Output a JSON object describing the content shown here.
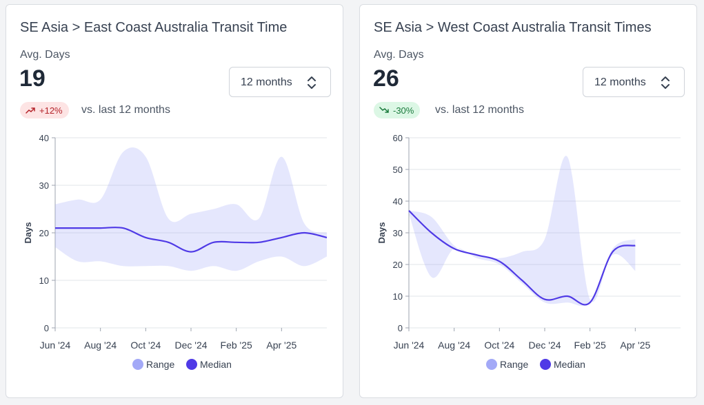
{
  "cards": [
    {
      "title": "SE Asia > East Coast Australia Transit Time",
      "metric_label": "Avg. Days",
      "value": 19,
      "change": "+12%",
      "trend": "up",
      "comparison": "vs. last 12 months",
      "select": "12 months"
    },
    {
      "title": "SE Asia > West Coast Australia Transit Times",
      "metric_label": "Avg. Days",
      "value": 26,
      "change": "-30%",
      "trend": "down",
      "comparison": "vs. last 12 months",
      "select": "12 months"
    }
  ],
  "chart_data": [
    {
      "type": "range-line",
      "ylabel": "Days",
      "x": [
        "Jun '24",
        null,
        "Aug '24",
        null,
        "Oct '24",
        null,
        "Dec '24",
        null,
        "Feb '25",
        null,
        "Apr '25",
        null,
        null
      ],
      "series": [
        {
          "name": "Range",
          "color": "#a3a9f7",
          "low": [
            17,
            14,
            14,
            13,
            13,
            13,
            12,
            13,
            12,
            14,
            15,
            13,
            15
          ],
          "high": [
            26,
            27,
            27,
            37,
            36,
            23,
            24,
            25,
            26,
            23,
            36,
            22,
            20
          ]
        },
        {
          "name": "Median",
          "color": "#4f3ae6",
          "values": [
            21,
            21,
            21,
            21,
            19,
            18,
            16,
            18,
            18,
            18,
            19,
            20,
            19
          ]
        }
      ],
      "ylim": [
        0,
        40
      ],
      "yticks": [
        0,
        10,
        20,
        30,
        40
      ],
      "grid": true
    },
    {
      "type": "range-line",
      "ylabel": "Days",
      "x": [
        "Jun '24",
        null,
        "Aug '24",
        null,
        "Oct '24",
        null,
        "Dec '24",
        null,
        "Feb '25",
        null,
        "Apr '25",
        null,
        null
      ],
      "series": [
        {
          "name": "Range",
          "color": "#a3a9f7",
          "low": [
            36,
            16,
            25,
            22,
            20,
            14,
            8,
            8,
            8,
            23,
            18,
            null,
            null
          ],
          "high": [
            37,
            35,
            26,
            23,
            22,
            24,
            28,
            54,
            9,
            25,
            28,
            null,
            null
          ]
        },
        {
          "name": "Median",
          "color": "#4f3ae6",
          "values": [
            37,
            30,
            25,
            23,
            21,
            15,
            9,
            10,
            8,
            24,
            26,
            null,
            null
          ]
        }
      ],
      "ylim": [
        0,
        60
      ],
      "yticks": [
        0,
        10,
        20,
        30,
        40,
        50,
        60
      ],
      "grid": true
    }
  ]
}
